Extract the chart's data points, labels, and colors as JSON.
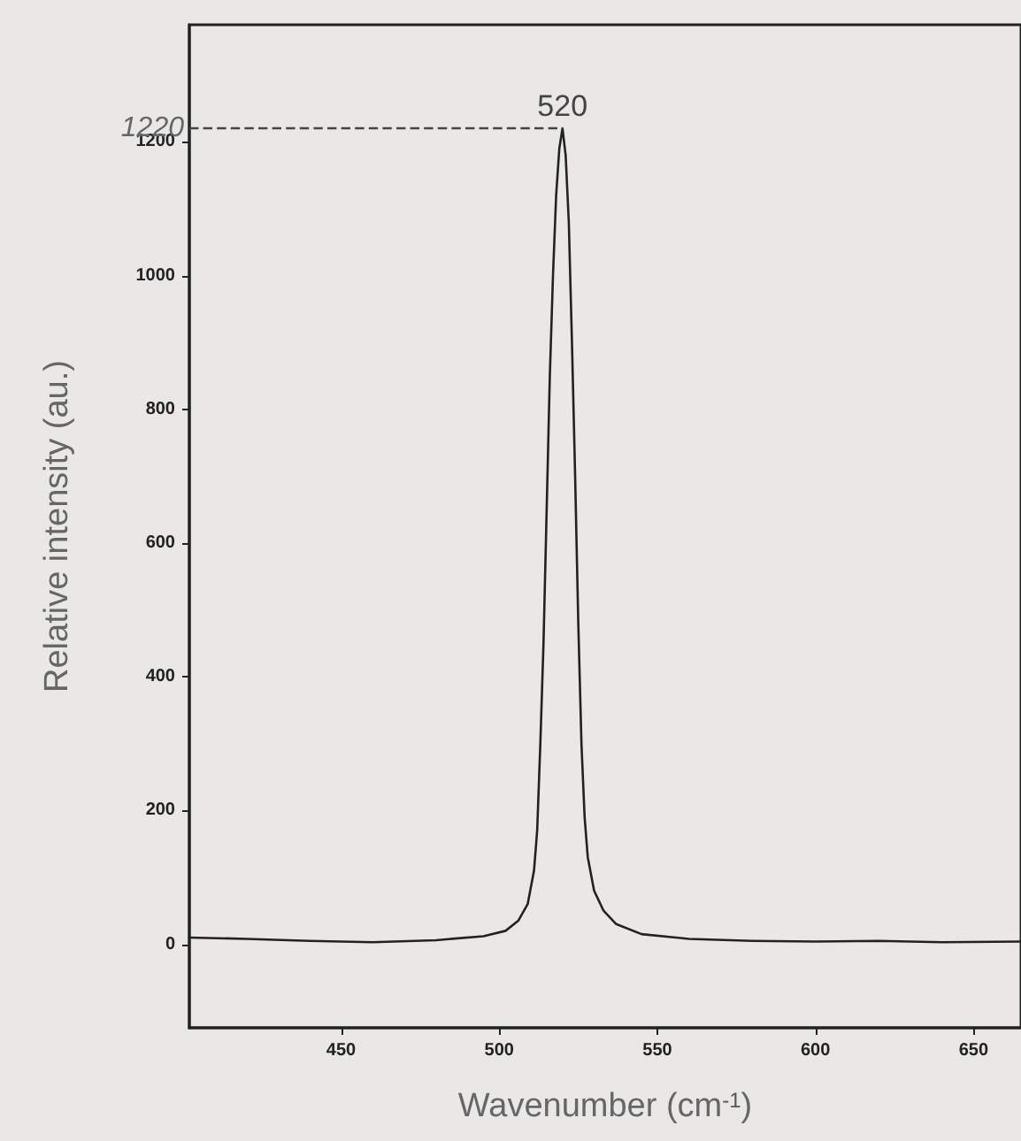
{
  "chart_data": {
    "type": "line",
    "xlabel": "Wavenumber (cm$^{-1}$)",
    "ylabel": "Relative intensity (au.)",
    "x": [
      402,
      420,
      440,
      460,
      480,
      495,
      502,
      506,
      509,
      511,
      512,
      513,
      514,
      515,
      516,
      517,
      518,
      519,
      520,
      521,
      522,
      523,
      524,
      525,
      526,
      527,
      528,
      530,
      533,
      537,
      545,
      560,
      580,
      600,
      620,
      640,
      665
    ],
    "series": [
      {
        "color": "#222222",
        "values": [
          10,
          8,
          5,
          3,
          6,
          12,
          20,
          35,
          60,
          110,
          170,
          300,
          450,
          650,
          850,
          1000,
          1120,
          1190,
          1220,
          1180,
          1080,
          900,
          700,
          480,
          300,
          190,
          130,
          80,
          50,
          30,
          15,
          8,
          5,
          4,
          5,
          3,
          4
        ]
      }
    ],
    "xlim": [
      402,
      665
    ],
    "xticks": [
      450,
      500,
      550,
      600,
      650
    ],
    "ylim": [
      -125,
      1375
    ],
    "yticks": [
      0,
      200,
      400,
      600,
      800,
      1000,
      1200
    ],
    "ref_lines": [
      {
        "axis": "y",
        "value": 1220,
        "label": "1220",
        "line_style": "dashed"
      }
    ],
    "annotations": [
      {
        "text": "520",
        "x": 520,
        "y": 1220
      }
    ],
    "grid": false,
    "marker": "none",
    "line_style": "solid"
  }
}
